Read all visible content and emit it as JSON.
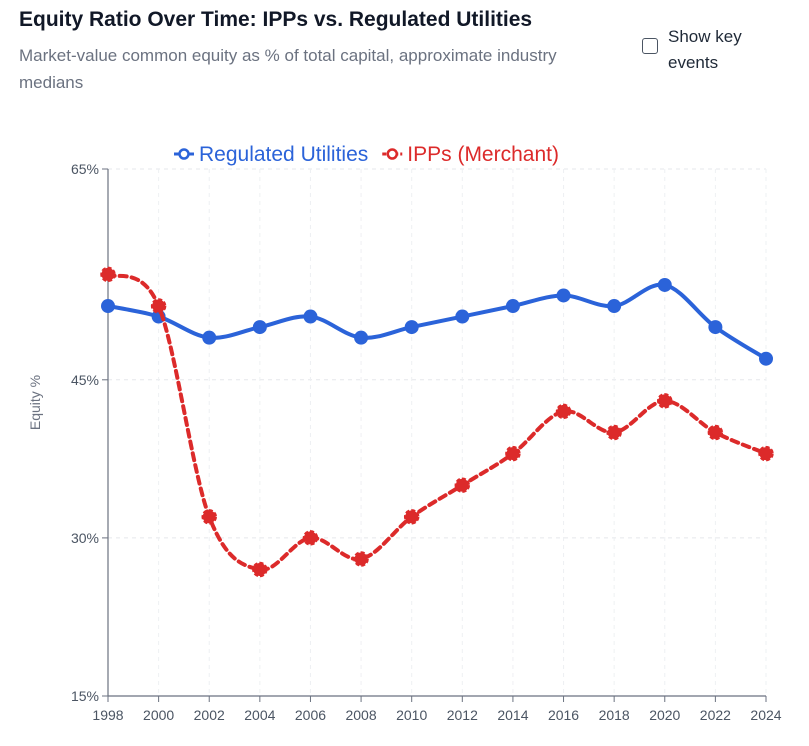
{
  "header": {
    "title": "Equity Ratio Over Time: IPPs vs. Regulated Utilities",
    "subtitle": "Market-value common equity as % of total capital, approximate industry medians"
  },
  "controls": {
    "show_key_events_label": "Show key events",
    "show_key_events_checked": false
  },
  "chart_data": {
    "type": "line",
    "title": "Equity Ratio Over Time: IPPs vs. Regulated Utilities",
    "xlabel": "",
    "ylabel": "Equity %",
    "x": [
      1998,
      2000,
      2002,
      2004,
      2006,
      2008,
      2010,
      2012,
      2014,
      2016,
      2018,
      2020,
      2022,
      2024
    ],
    "x_tick_labels": [
      "1998",
      "2000",
      "2002",
      "2004",
      "2006",
      "2008",
      "2010",
      "2012",
      "2014",
      "2016",
      "2018",
      "2020",
      "2022",
      "2024"
    ],
    "ylim": [
      15,
      65
    ],
    "y_ticks": [
      15,
      30,
      45,
      65
    ],
    "y_tick_labels": [
      "15%",
      "30%",
      "45%",
      "65%"
    ],
    "grid": true,
    "legend_position": "top-center",
    "series": [
      {
        "name": "Regulated Utilities",
        "color": "#2b63d9",
        "style": "solid",
        "values": [
          52,
          51,
          49,
          50,
          51,
          49,
          50,
          51,
          52,
          53,
          52,
          54,
          50,
          47
        ]
      },
      {
        "name": "IPPs (Merchant)",
        "color": "#dc2a2a",
        "style": "dashed",
        "values": [
          55,
          52,
          32,
          27,
          30,
          28,
          32,
          35,
          38,
          42,
          40,
          43,
          40,
          38
        ]
      }
    ]
  }
}
